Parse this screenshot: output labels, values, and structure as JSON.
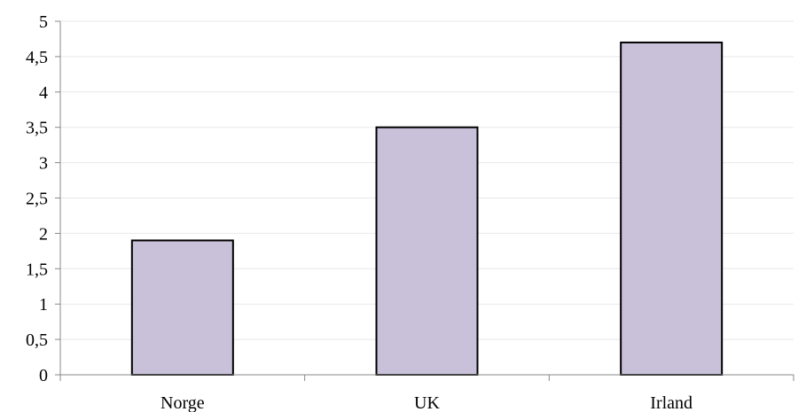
{
  "chart_data": {
    "type": "bar",
    "title": "",
    "xlabel": "",
    "ylabel": "",
    "categories": [
      "Norge",
      "UK",
      "Irland"
    ],
    "values": [
      1.9,
      3.5,
      4.7
    ],
    "ylim": [
      0,
      5
    ],
    "yticks": [
      0,
      0.5,
      1,
      1.5,
      2,
      2.5,
      3,
      3.5,
      4,
      4.5,
      5
    ],
    "ytick_labels": [
      "0",
      "0,5",
      "1",
      "1,5",
      "2",
      "2,5",
      "3",
      "3,5",
      "4",
      "4,5",
      "5"
    ],
    "grid": true,
    "bar_color": "#c9c0da",
    "bar_edge_color": "#000000"
  }
}
